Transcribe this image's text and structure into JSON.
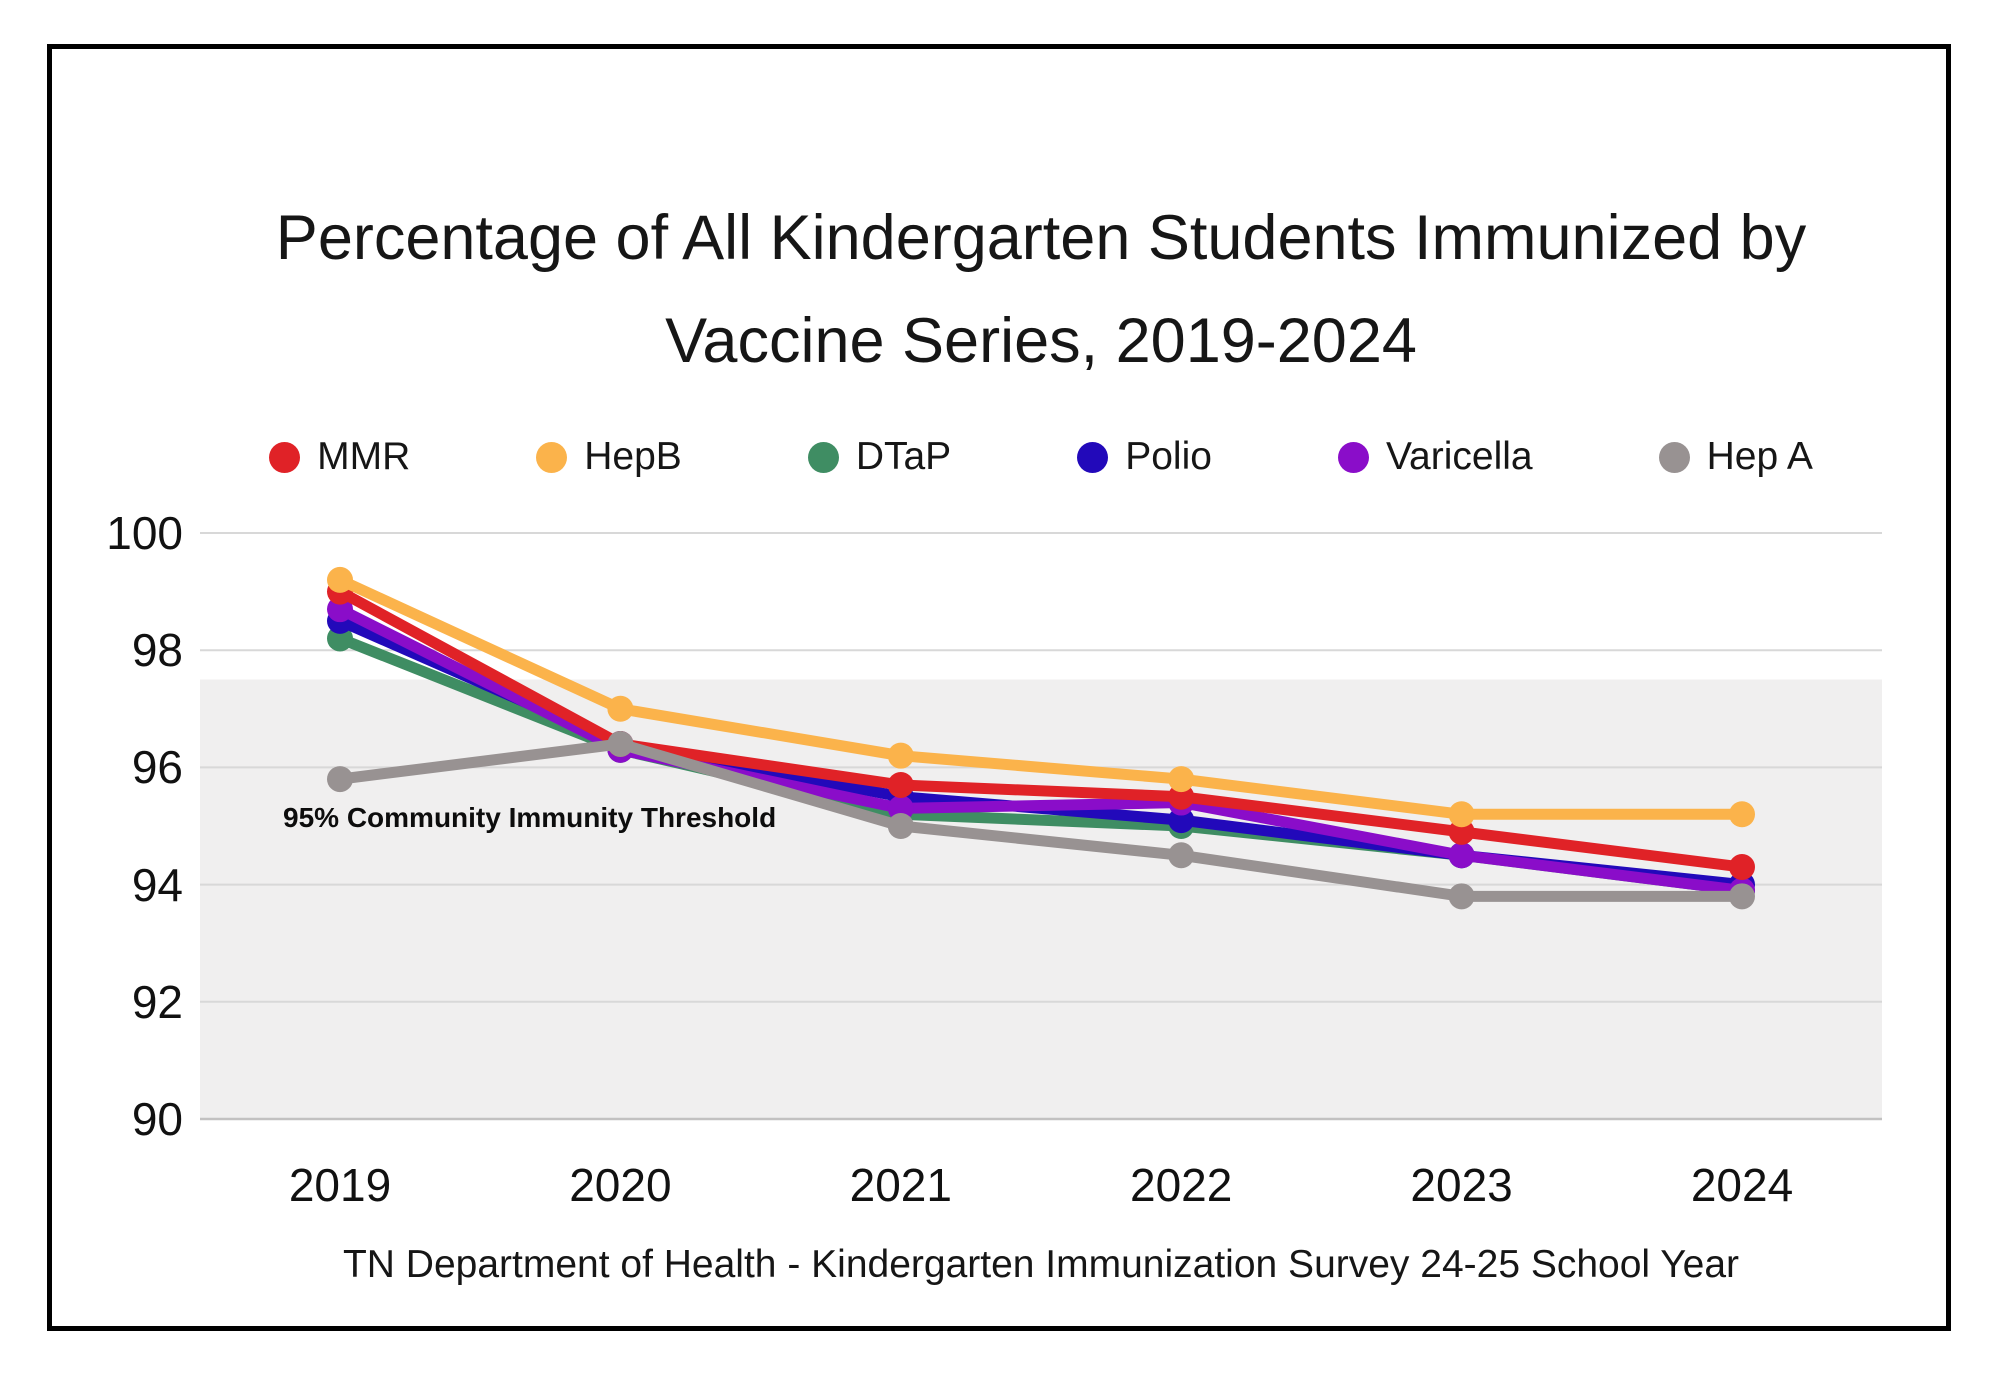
{
  "title": "Percentage of All Kindergarten Students Immunized by Vaccine Series, 2019-2024",
  "caption": "TN Department of Health - Kindergarten Immunization Survey 24-25 School Year",
  "chart_data": {
    "type": "line",
    "title": "Percentage of All Kindergarten Students Immunized by Vaccine Series, 2019-2024",
    "categories": [
      "2019",
      "2020",
      "2021",
      "2022",
      "2023",
      "2024"
    ],
    "series": [
      {
        "name": "MMR",
        "color": "#E02227",
        "values": [
          99.0,
          96.4,
          95.7,
          95.5,
          94.9,
          94.3
        ]
      },
      {
        "name": "HepB",
        "color": "#FBB34B",
        "values": [
          99.2,
          97.0,
          96.2,
          95.8,
          95.2,
          95.2
        ]
      },
      {
        "name": "DTaP",
        "color": "#3F8D63",
        "values": [
          98.2,
          96.3,
          95.2,
          95.0,
          94.5,
          93.9
        ]
      },
      {
        "name": "Polio",
        "color": "#2209BA",
        "values": [
          98.5,
          96.4,
          95.5,
          95.1,
          94.5,
          94.0
        ]
      },
      {
        "name": "Varicella",
        "color": "#8A0DC9",
        "values": [
          98.7,
          96.3,
          95.3,
          95.4,
          94.5,
          93.9
        ]
      },
      {
        "name": "Hep A",
        "color": "#989292",
        "values": [
          95.8,
          96.4,
          95.0,
          94.5,
          93.8,
          93.8
        ]
      }
    ],
    "ylim": [
      90,
      100
    ],
    "y_ticks": [
      100,
      98,
      96,
      94,
      92,
      90
    ],
    "grid": true,
    "legend_position": "top-center",
    "threshold_band": {
      "from": 90,
      "to": 97.5,
      "color": "#F0EFEF",
      "label": "95% Community Immunity Threshold"
    },
    "gridline_color": "#D8D8D8",
    "baseline_color": "#C2C1C1",
    "xlabel": "",
    "ylabel": ""
  }
}
